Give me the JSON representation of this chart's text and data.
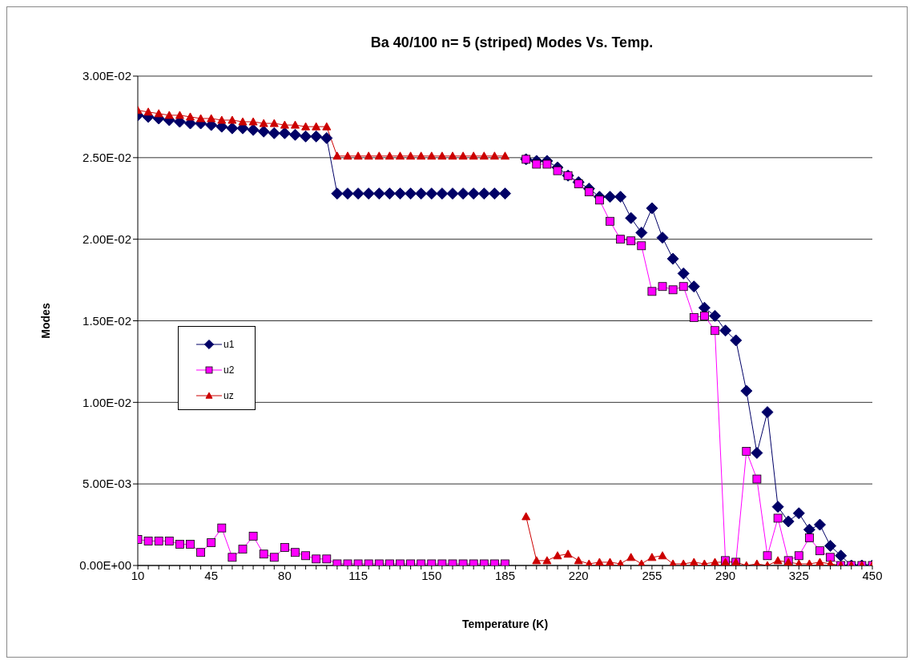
{
  "chart_data": {
    "type": "line",
    "title": "Ba 40/100 n= 5 (striped) Modes Vs. Temp.",
    "xlabel": "Temperature (K)",
    "ylabel": "Modes",
    "categories": [
      "10",
      null,
      null,
      null,
      null,
      null,
      null,
      "45",
      null,
      null,
      null,
      null,
      null,
      null,
      "80",
      null,
      null,
      null,
      null,
      null,
      null,
      "115",
      null,
      null,
      null,
      null,
      null,
      null,
      "150",
      null,
      null,
      null,
      null,
      null,
      null,
      "185",
      null,
      null,
      null,
      null,
      null,
      null,
      "220",
      null,
      null,
      null,
      null,
      null,
      null,
      "255",
      null,
      null,
      null,
      null,
      null,
      null,
      "290",
      null,
      null,
      null,
      null,
      null,
      null,
      "325",
      null,
      null,
      null,
      null,
      null,
      null,
      "450"
    ],
    "series": [
      {
        "name": "u1",
        "color": "#000066",
        "marker": "diamond",
        "values": [
          0.0276,
          0.0275,
          0.0274,
          0.0273,
          0.0272,
          0.0271,
          0.0271,
          0.027,
          0.0269,
          0.0268,
          0.0268,
          0.0267,
          0.0266,
          0.0265,
          0.0265,
          0.0264,
          0.0263,
          0.0263,
          0.0262,
          0.0228,
          0.0228,
          0.0228,
          0.0228,
          0.0228,
          0.0228,
          0.0228,
          0.0228,
          0.0228,
          0.0228,
          0.0228,
          0.0228,
          0.0228,
          0.0228,
          0.0228,
          0.0228,
          0.0228,
          null,
          0.0249,
          0.0248,
          0.0248,
          0.0244,
          0.0239,
          0.0235,
          0.0231,
          0.0226,
          0.0226,
          0.0226,
          0.0213,
          0.0204,
          0.0219,
          0.0201,
          0.0188,
          0.0179,
          0.0171,
          0.0158,
          0.0153,
          0.0144,
          0.0138,
          0.0107,
          0.0069,
          0.0094,
          0.0036,
          0.0027,
          0.0032,
          0.0022,
          0.0025,
          0.0012,
          0.0006,
          0.0,
          0.0,
          0.0
        ]
      },
      {
        "name": "u2",
        "color": "#ff00ff",
        "marker": "square",
        "values": [
          0.0016,
          0.0015,
          0.0015,
          0.0015,
          0.0013,
          0.0013,
          0.0008,
          0.0014,
          0.0023,
          0.0005,
          0.001,
          0.0018,
          0.0007,
          0.0005,
          0.0011,
          0.0008,
          0.0006,
          0.0004,
          0.0004,
          0.0001,
          0.0001,
          0.0001,
          0.0001,
          0.0001,
          0.0001,
          0.0001,
          0.0001,
          0.0001,
          0.0001,
          0.0001,
          0.0001,
          0.0001,
          0.0001,
          0.0001,
          0.0001,
          0.0001,
          null,
          0.0249,
          0.0246,
          0.0246,
          0.0242,
          0.0239,
          0.0234,
          0.0229,
          0.0224,
          0.0211,
          0.02,
          0.0199,
          0.0196,
          0.0168,
          0.0171,
          0.0169,
          0.0171,
          0.0152,
          0.0153,
          0.0144,
          0.0003,
          0.0002,
          0.007,
          0.0053,
          0.0006,
          0.0029,
          0.0003,
          0.0006,
          0.0017,
          0.0009,
          0.0005,
          0.0,
          0.0,
          0.0,
          0.0
        ]
      },
      {
        "name": "uz",
        "color": "#cc0000",
        "marker": "triangle",
        "values": [
          0.0279,
          0.0278,
          0.0277,
          0.0276,
          0.0276,
          0.0275,
          0.0274,
          0.0274,
          0.0273,
          0.0273,
          0.0272,
          0.0272,
          0.0271,
          0.0271,
          0.027,
          0.027,
          0.0269,
          0.0269,
          0.0269,
          0.0251,
          0.0251,
          0.0251,
          0.0251,
          0.0251,
          0.0251,
          0.0251,
          0.0251,
          0.0251,
          0.0251,
          0.0251,
          0.0251,
          0.0251,
          0.0251,
          0.0251,
          0.0251,
          0.0251,
          null,
          0.003,
          0.0003,
          0.0003,
          0.0006,
          0.0007,
          0.0003,
          0.0001,
          0.0002,
          0.0002,
          0.0001,
          0.0005,
          0.0001,
          0.0005,
          0.0006,
          0.0001,
          0.0001,
          0.0002,
          0.0001,
          0.0002,
          0.0002,
          0.0002,
          0.0,
          0.0001,
          0.0,
          0.0003,
          0.0002,
          0.0001,
          0.0001,
          0.0002,
          0.0001,
          0.0,
          0.0,
          0.0,
          0.0
        ]
      }
    ],
    "ylim": [
      0,
      0.03
    ],
    "yticks": [
      {
        "value": 0,
        "label": "0.00E+00"
      },
      {
        "value": 0.005,
        "label": "5.00E-03"
      },
      {
        "value": 0.01,
        "label": "1.00E-02"
      },
      {
        "value": 0.015,
        "label": "1.50E-02"
      },
      {
        "value": 0.02,
        "label": "2.00E-02"
      },
      {
        "value": 0.025,
        "label": "2.50E-02"
      },
      {
        "value": 0.03,
        "label": "3.00E-02"
      }
    ],
    "grid": "y",
    "legend": "left",
    "line_style": "solid"
  }
}
